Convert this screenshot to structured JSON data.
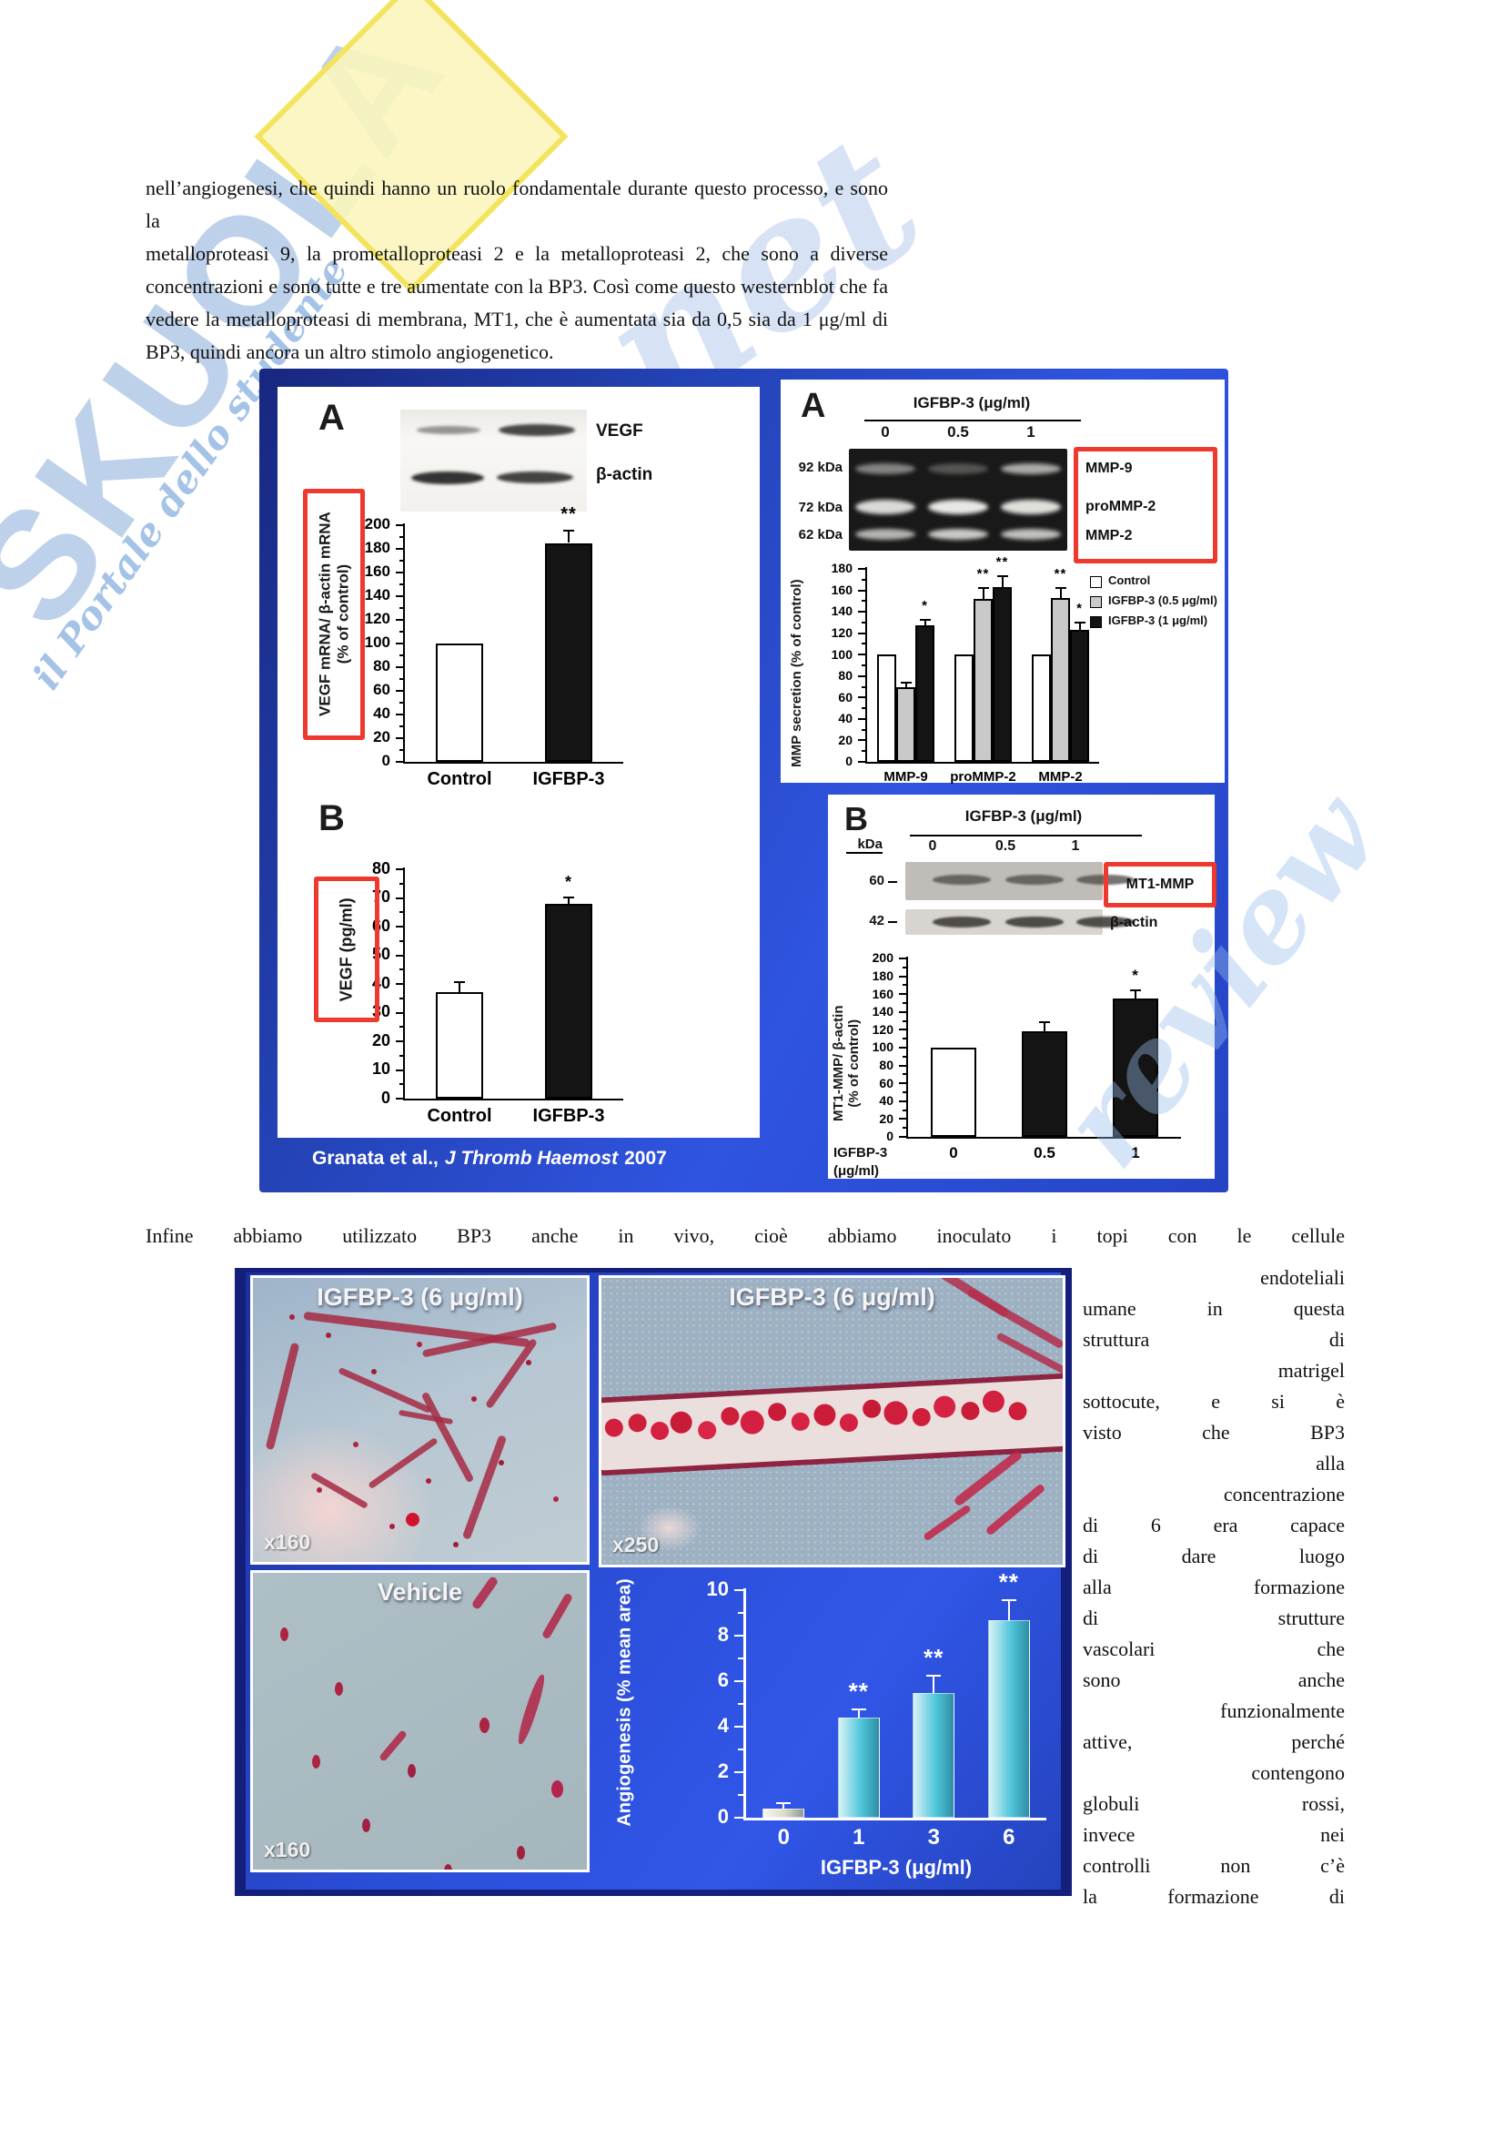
{
  "page": {
    "paragraph1_lines": [
      "nell’angiogenesi, che quindi hanno un ruolo fondamentale durante questo processo, e sono la",
      "metalloproteasi 9, la prometalloproteasi 2 e la metalloproteasi 2, che sono a diverse",
      "concentrazioni e sono tutte e tre aumentate con la BP3. Così come questo westernblot che fa",
      "vedere la metalloproteasi di membrana, MT1, che è aumentata sia da 0,5 sia da 1 μg/ml di",
      "BP3, quindi ancora un altro stimolo angiogenetico."
    ],
    "paragraph2_first_line": "Infine abbiamo utilizzato BP3 anche in vivo, cioè abbiamo inoculato i topi con le cellule",
    "right_column_lines": [
      "endoteliali",
      "umane in questa",
      "struttura di",
      "matrigel",
      "sottocute, e si è",
      "visto che BP3",
      "alla",
      "concentrazione",
      "di 6 era capace",
      "di dare luogo",
      "alla formazione",
      "di strutture",
      "vascolari che",
      "sono anche",
      "funzionalmente",
      "attive, perché",
      "contengono",
      "globuli rossi,",
      "invece nei",
      "controlli non c’è",
      "la formazione di"
    ]
  },
  "watermark": {
    "letters": "SKUOLA",
    "net_script": "net",
    "script": "il Portale dello studente",
    "review_script": "review"
  },
  "figure1": {
    "citation": {
      "authors": "Granata et al.,",
      "journal": "J Thromb Haemost",
      "year": "2007"
    },
    "left_a": {
      "label": "A",
      "band_labels": [
        "VEGF",
        "β-actin"
      ]
    },
    "left_b": {
      "label": "B"
    },
    "right_a": {
      "label": "A",
      "gel_title": "IGFBP-3 (μg/ml)",
      "lanes": [
        "0",
        "0.5",
        "1"
      ],
      "kda_labels": [
        "92 kDa",
        "72 kDa",
        "62 kDa"
      ],
      "band_labels": [
        "MMP-9",
        "proMMP-2",
        "MMP-2"
      ]
    },
    "right_b": {
      "label": "B",
      "blot_title": "IGFBP-3 (μg/ml)",
      "kda_header": "kDa",
      "lanes": [
        "0",
        "0.5",
        "1"
      ],
      "kda_labels": [
        "60",
        "42"
      ],
      "band_labels": [
        "MT1-MMP",
        "β-actin"
      ]
    }
  },
  "figure2": {
    "images": [
      {
        "title": "IGFBP-3 (6 μg/ml)",
        "magnification": "x160"
      },
      {
        "title": "IGFBP-3 (6 μg/ml)",
        "magnification": "x250"
      },
      {
        "title": "Vehicle",
        "magnification": "x160"
      }
    ]
  },
  "chart_data": [
    {
      "id": "vegf_mrna",
      "type": "bar",
      "categories": [
        "Control",
        "IGFBP-3"
      ],
      "values": [
        100,
        185
      ],
      "errors": [
        0,
        11
      ],
      "annotations": [
        "",
        "**"
      ],
      "bar_colors": [
        "#ffffff",
        "#141414"
      ],
      "ylabel": "VEGF mRNA/ β-actin mRNA\n(% of control)",
      "xlabel": "",
      "ylim": [
        0,
        200
      ],
      "ytick_step": 20,
      "grid": false
    },
    {
      "id": "vegf_protein",
      "type": "bar",
      "categories": [
        "Control",
        "IGFBP-3"
      ],
      "values": [
        37,
        68
      ],
      "errors": [
        4,
        2.5
      ],
      "annotations": [
        "",
        "*"
      ],
      "bar_colors": [
        "#ffffff",
        "#141414"
      ],
      "ylabel": "VEGF (pg/ml)",
      "xlabel": "",
      "ylim": [
        0,
        80
      ],
      "ytick_step": 10,
      "grid": false
    },
    {
      "id": "mmp_secretion",
      "type": "bar",
      "categories": [
        "MMP-9",
        "proMMP-2",
        "MMP-2"
      ],
      "series": [
        {
          "name": "Control",
          "color": "#ffffff",
          "values": [
            100,
            100,
            100
          ],
          "errors": [
            0,
            0,
            0
          ],
          "annotations": [
            "",
            "",
            ""
          ]
        },
        {
          "name": "IGFBP-3 (0.5 μg/ml)",
          "color": "#c9c9c9",
          "values": [
            70,
            152,
            153
          ],
          "errors": [
            5,
            11,
            10
          ],
          "annotations": [
            "",
            "**",
            "**"
          ]
        },
        {
          "name": "IGFBP-3 (1 μg/ml)",
          "color": "#141414",
          "values": [
            127,
            163,
            123
          ],
          "errors": [
            6,
            11,
            8
          ],
          "annotations": [
            "*",
            "**",
            "*"
          ]
        }
      ],
      "ylabel": "MMP secretion (% of control)",
      "xlabel": "",
      "ylim": [
        0,
        180
      ],
      "ytick_step": 20,
      "legend_position": "right-top",
      "grid": false
    },
    {
      "id": "mt1_mmp",
      "type": "bar",
      "categories": [
        "0",
        "0.5",
        "1"
      ],
      "values": [
        100,
        118,
        155
      ],
      "errors": [
        0,
        12,
        10
      ],
      "annotations": [
        "",
        "",
        "*"
      ],
      "bar_colors": [
        "#ffffff",
        "#141414",
        "#141414"
      ],
      "ylabel": "MT1-MMP/ β-actin\n(% of control)",
      "xlabel": "IGFBP-3\n(μg/ml)",
      "ylim": [
        0,
        200
      ],
      "ytick_step": 20,
      "grid": false
    },
    {
      "id": "angiogenesis",
      "type": "bar",
      "theme": "dark",
      "categories": [
        "0",
        "1",
        "3",
        "6"
      ],
      "values": [
        0.4,
        4.4,
        5.5,
        8.7
      ],
      "errors": [
        0.3,
        0.4,
        0.8,
        0.9
      ],
      "annotations": [
        "",
        "**",
        "**",
        "**"
      ],
      "bar_colors": [
        "#d8d8c6",
        "#46c3d8",
        "#46c3d8",
        "#46c3d8"
      ],
      "ylabel": "Angiogenesis (% mean area)",
      "xlabel": "IGFBP-3 (μg/ml)",
      "ylim": [
        0,
        10
      ],
      "ytick_step": 2,
      "grid": false
    }
  ]
}
